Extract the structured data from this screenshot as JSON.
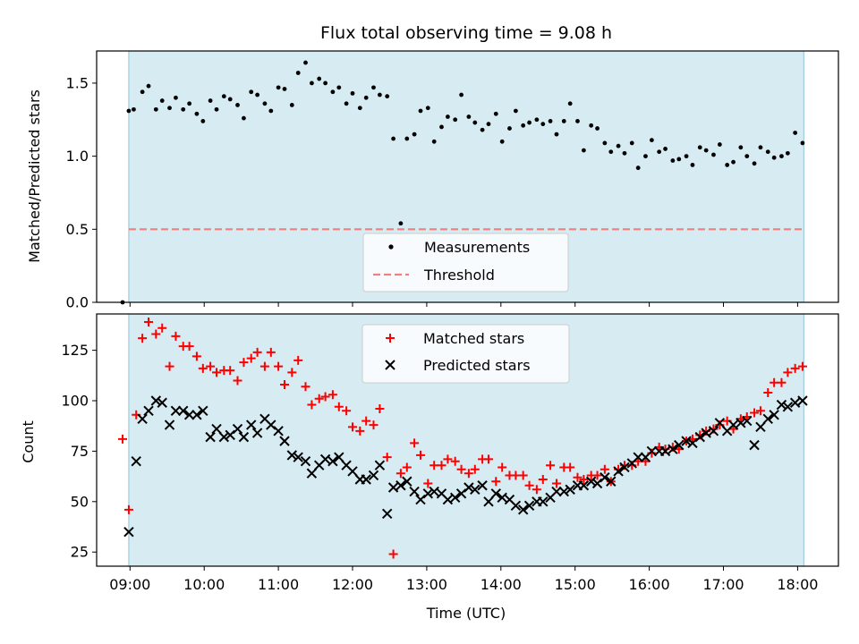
{
  "chart_data": [
    {
      "type": "scatter",
      "title": "Flux total observing time = 9.08 h",
      "xlabel": "",
      "ylabel": "Matched/Predicted stars",
      "xlim": [
        "08:33",
        "18:33"
      ],
      "ylim": [
        0,
        1.72
      ],
      "yticks": [
        "0.0",
        "0.5",
        "1.0",
        "1.5"
      ],
      "observing_window": [
        "08:59",
        "18:05"
      ],
      "legend": {
        "placement": "lower-center",
        "entries": [
          "Measurements",
          "Threshold"
        ]
      },
      "threshold": {
        "name": "Threshold",
        "value": 0.5,
        "color": "#f08080",
        "style": "dashed"
      },
      "series": [
        {
          "name": "Measurements",
          "color": "#000000",
          "x": [
            "08:54",
            "08:59",
            "09:03",
            "09:10",
            "09:15",
            "09:21",
            "09:26",
            "09:32",
            "09:37",
            "09:43",
            "09:48",
            "09:54",
            "09:59",
            "10:05",
            "10:10",
            "10:16",
            "10:21",
            "10:27",
            "10:32",
            "10:38",
            "10:43",
            "10:49",
            "10:54",
            "11:00",
            "11:05",
            "11:11",
            "11:16",
            "11:22",
            "11:27",
            "11:33",
            "11:38",
            "11:44",
            "11:49",
            "11:55",
            "12:00",
            "12:06",
            "12:11",
            "12:17",
            "12:22",
            "12:28",
            "12:33",
            "12:39",
            "12:44",
            "12:50",
            "12:55",
            "13:01",
            "13:06",
            "13:12",
            "13:17",
            "13:23",
            "13:28",
            "13:34",
            "13:39",
            "13:45",
            "13:50",
            "13:56",
            "14:01",
            "14:07",
            "14:12",
            "14:18",
            "14:23",
            "14:29",
            "14:34",
            "14:40",
            "14:45",
            "14:51",
            "14:56",
            "15:02",
            "15:07",
            "15:13",
            "15:18",
            "15:24",
            "15:29",
            "15:35",
            "15:40",
            "15:46",
            "15:51",
            "15:57",
            "16:02",
            "16:08",
            "16:13",
            "16:19",
            "16:24",
            "16:30",
            "16:35",
            "16:41",
            "16:46",
            "16:52",
            "16:57",
            "17:03",
            "17:08",
            "17:14",
            "17:19",
            "17:25",
            "17:30",
            "17:36",
            "17:41",
            "17:47",
            "17:52",
            "17:58",
            "18:04"
          ],
          "y": [
            0.0,
            1.31,
            1.32,
            1.44,
            1.48,
            1.32,
            1.38,
            1.33,
            1.4,
            1.32,
            1.36,
            1.29,
            1.24,
            1.38,
            1.32,
            1.41,
            1.39,
            1.35,
            1.26,
            1.44,
            1.42,
            1.36,
            1.31,
            1.47,
            1.46,
            1.35,
            1.57,
            1.64,
            1.5,
            1.53,
            1.5,
            1.44,
            1.47,
            1.36,
            1.43,
            1.33,
            1.4,
            1.47,
            1.42,
            1.41,
            1.12,
            0.54,
            1.12,
            1.15,
            1.31,
            1.33,
            1.1,
            1.2,
            1.27,
            1.25,
            1.42,
            1.27,
            1.23,
            1.18,
            1.22,
            1.29,
            1.1,
            1.19,
            1.31,
            1.21,
            1.23,
            1.25,
            1.22,
            1.24,
            1.15,
            1.24,
            1.36,
            1.24,
            1.04,
            1.21,
            1.19,
            1.09,
            1.03,
            1.07,
            1.02,
            1.09,
            0.92,
            1.0,
            1.11,
            1.03,
            1.05,
            0.97,
            0.98,
            1.0,
            0.94,
            1.06,
            1.04,
            1.01,
            1.08,
            0.94,
            0.96,
            1.06,
            1.0,
            0.95,
            1.06,
            1.03,
            0.99,
            1.0,
            1.02,
            1.16,
            1.09
          ]
        }
      ]
    },
    {
      "type": "scatter",
      "xlabel": "Time (UTC)",
      "ylabel": "Count",
      "xlim": [
        "08:33",
        "18:33"
      ],
      "ylim": [
        18,
        143
      ],
      "yticks": [
        "25",
        "50",
        "75",
        "100",
        "125"
      ],
      "xticks": [
        "09:00",
        "10:00",
        "11:00",
        "12:00",
        "13:00",
        "14:00",
        "15:00",
        "16:00",
        "17:00",
        "18:00"
      ],
      "observing_window": [
        "08:59",
        "18:05"
      ],
      "legend": {
        "placement": "upper-center",
        "entries": [
          "Matched stars",
          "Predicted stars"
        ]
      },
      "series": [
        {
          "name": "Matched stars",
          "marker": "+",
          "color": "#ff0000",
          "x": [
            "08:54",
            "08:59",
            "09:05",
            "09:10",
            "09:15",
            "09:21",
            "09:26",
            "09:32",
            "09:37",
            "09:43",
            "09:48",
            "09:54",
            "09:59",
            "10:05",
            "10:10",
            "10:16",
            "10:21",
            "10:27",
            "10:32",
            "10:38",
            "10:43",
            "10:49",
            "10:54",
            "11:00",
            "11:05",
            "11:11",
            "11:16",
            "11:22",
            "11:27",
            "11:33",
            "11:38",
            "11:44",
            "11:49",
            "11:55",
            "12:00",
            "12:06",
            "12:11",
            "12:17",
            "12:22",
            "12:28",
            "12:33",
            "12:39",
            "12:44",
            "12:50",
            "12:55",
            "13:01",
            "13:06",
            "13:12",
            "13:17",
            "13:23",
            "13:28",
            "13:34",
            "13:39",
            "13:45",
            "13:50",
            "13:56",
            "14:01",
            "14:07",
            "14:12",
            "14:18",
            "14:23",
            "14:29",
            "14:34",
            "14:40",
            "14:45",
            "14:51",
            "14:56",
            "15:02",
            "15:07",
            "15:13",
            "15:18",
            "15:24",
            "15:29",
            "15:35",
            "15:40",
            "15:46",
            "15:51",
            "15:57",
            "16:02",
            "16:08",
            "16:13",
            "16:19",
            "16:24",
            "16:30",
            "16:35",
            "16:41",
            "16:46",
            "16:52",
            "16:57",
            "17:03",
            "17:08",
            "17:14",
            "17:19",
            "17:25",
            "17:30",
            "17:36",
            "17:41",
            "17:47",
            "17:52",
            "17:58",
            "18:04"
          ],
          "y": [
            81,
            46,
            93,
            131,
            139,
            133,
            136,
            117,
            132,
            127,
            127,
            122,
            116,
            117,
            114,
            115,
            115,
            110,
            119,
            121,
            124,
            117,
            124,
            117,
            108,
            114,
            120,
            107,
            98,
            101,
            102,
            103,
            97,
            95,
            87,
            85,
            90,
            88,
            96,
            72,
            24,
            64,
            67,
            79,
            73,
            59,
            68,
            68,
            71,
            70,
            66,
            64,
            66,
            71,
            71,
            60,
            67,
            63,
            63,
            63,
            58,
            56,
            61,
            68,
            59,
            67,
            67,
            62,
            61,
            63,
            63,
            66,
            60,
            66,
            68,
            68,
            70,
            70,
            74,
            77,
            76,
            77,
            76,
            80,
            81,
            83,
            85,
            86,
            88,
            90,
            86,
            91,
            92,
            94,
            95,
            104,
            109,
            109,
            114,
            116,
            117
          ]
        },
        {
          "name": "Predicted stars",
          "marker": "x",
          "color": "#000000",
          "x": [
            "08:59",
            "09:05",
            "09:10",
            "09:15",
            "09:21",
            "09:26",
            "09:32",
            "09:37",
            "09:43",
            "09:48",
            "09:54",
            "09:59",
            "10:05",
            "10:10",
            "10:16",
            "10:21",
            "10:27",
            "10:32",
            "10:38",
            "10:43",
            "10:49",
            "10:54",
            "11:00",
            "11:05",
            "11:11",
            "11:16",
            "11:22",
            "11:27",
            "11:33",
            "11:38",
            "11:44",
            "11:49",
            "11:55",
            "12:00",
            "12:06",
            "12:11",
            "12:17",
            "12:22",
            "12:28",
            "12:33",
            "12:39",
            "12:44",
            "12:50",
            "12:55",
            "13:01",
            "13:06",
            "13:12",
            "13:17",
            "13:23",
            "13:28",
            "13:34",
            "13:39",
            "13:45",
            "13:50",
            "13:56",
            "14:01",
            "14:07",
            "14:12",
            "14:18",
            "14:23",
            "14:29",
            "14:34",
            "14:40",
            "14:45",
            "14:51",
            "14:56",
            "15:02",
            "15:07",
            "15:13",
            "15:18",
            "15:24",
            "15:29",
            "15:35",
            "15:40",
            "15:46",
            "15:51",
            "15:57",
            "16:02",
            "16:08",
            "16:13",
            "16:19",
            "16:24",
            "16:30",
            "16:35",
            "16:41",
            "16:46",
            "16:52",
            "16:57",
            "17:03",
            "17:08",
            "17:14",
            "17:19",
            "17:25",
            "17:30",
            "17:36",
            "17:41",
            "17:47",
            "17:52",
            "17:58",
            "18:04"
          ],
          "y": [
            35,
            70,
            91,
            95,
            100,
            99,
            88,
            95,
            95,
            93,
            93,
            95,
            82,
            86,
            82,
            83,
            86,
            82,
            88,
            84,
            91,
            88,
            85,
            80,
            73,
            72,
            70,
            64,
            68,
            71,
            70,
            72,
            68,
            65,
            61,
            61,
            63,
            68,
            44,
            57,
            58,
            60,
            55,
            51,
            54,
            55,
            54,
            51,
            52,
            54,
            57,
            56,
            58,
            50,
            54,
            52,
            51,
            48,
            46,
            48,
            50,
            50,
            52,
            55,
            55,
            56,
            58,
            58,
            60,
            59,
            62,
            60,
            65,
            67,
            69,
            72,
            72,
            75,
            75,
            75,
            76,
            78,
            80,
            79,
            82,
            84,
            85,
            89,
            85,
            88,
            89,
            90,
            78,
            87,
            91,
            93,
            98,
            97,
            99,
            100
          ]
        }
      ]
    }
  ]
}
